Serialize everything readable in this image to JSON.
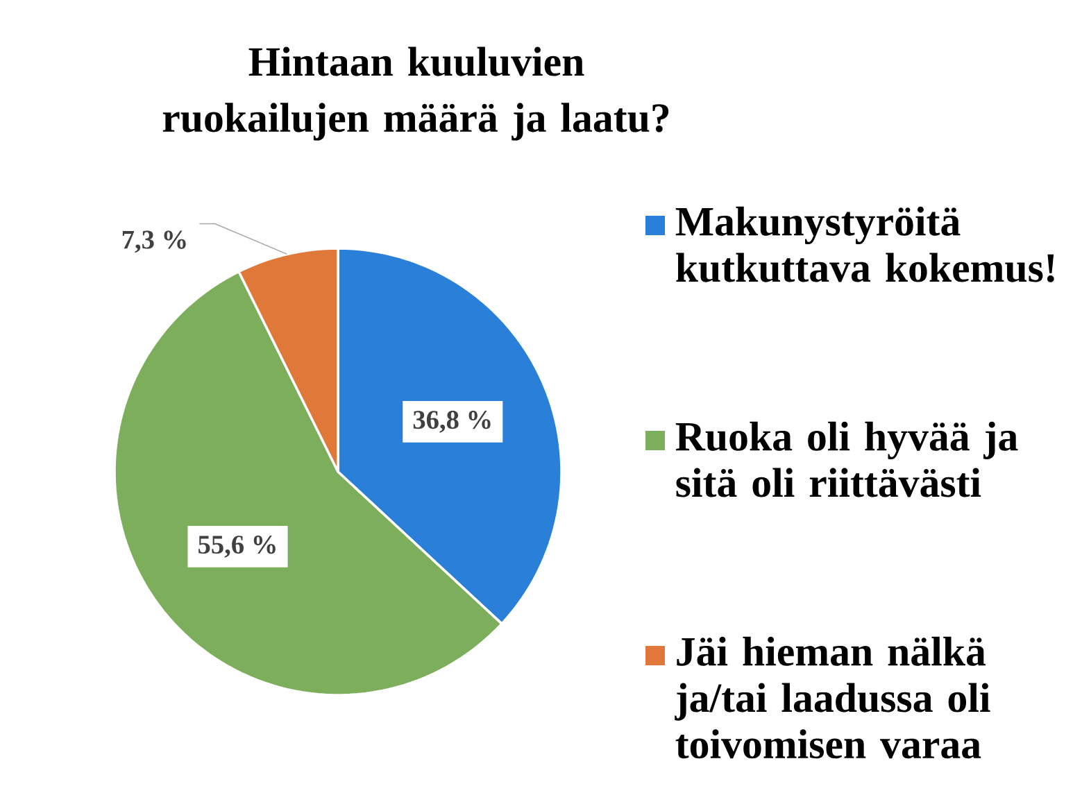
{
  "chart_data": {
    "type": "pie",
    "title": "Hintaan kuuluvien ruokailujen määrä ja laatu?",
    "categories": [
      "Makunystyröitä kutkuttava kokemus!",
      "Ruoka oli hyvää ja sitä oli riittävästi",
      "Jäi hieman nälkä ja/tai laadussa oli toivomisen varaa"
    ],
    "values": [
      36.8,
      55.6,
      7.3
    ],
    "colors": [
      "#2a7fd8",
      "#7dae5c",
      "#e0783a"
    ],
    "value_labels": [
      "36,8 %",
      "55,6 %",
      "7,3 %"
    ],
    "legend": "right"
  }
}
